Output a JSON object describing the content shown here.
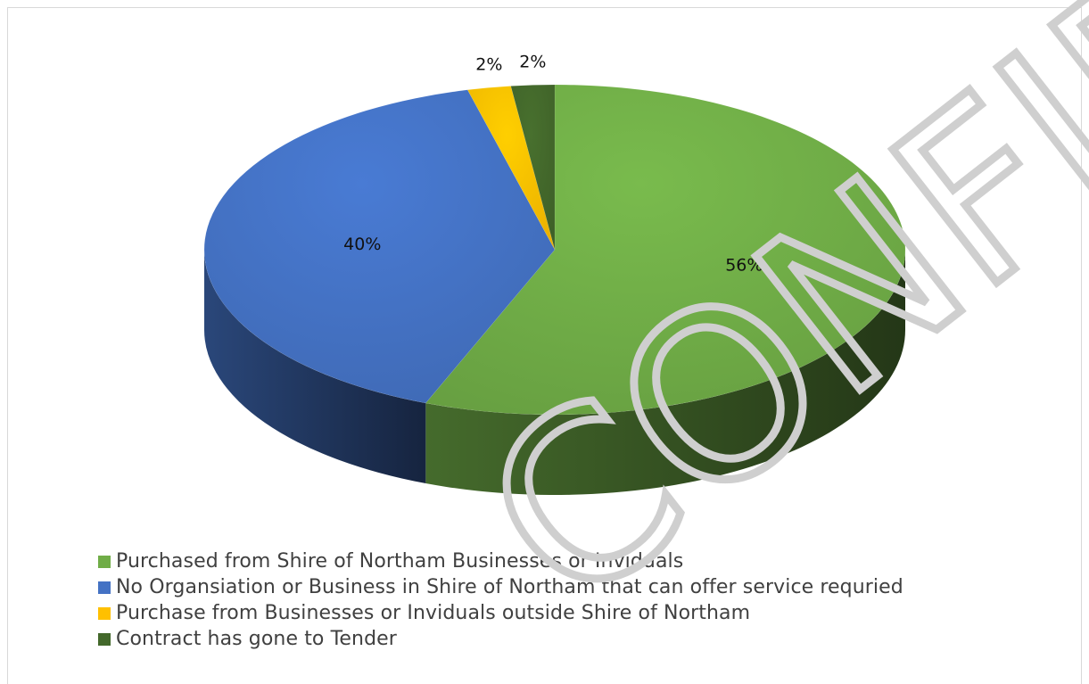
{
  "chart_data": {
    "type": "pie",
    "style": "3d",
    "slices": [
      {
        "label": "Purchased from Shire of Northam Businesses or Inviduals",
        "value": 56,
        "data_label": "56%",
        "color": "#70ad47"
      },
      {
        "label": "No Organsiation or Business in Shire of Northam that can offer service requried",
        "value": 40,
        "data_label": "40%",
        "color": "#4472c4"
      },
      {
        "label": "Purchase from Businesses or Inviduals outside Shire of Northam",
        "value": 2,
        "data_label": "2%",
        "color": "#ffc000"
      },
      {
        "label": "Contract has gone to Tender",
        "value": 2,
        "data_label": "2%",
        "color": "#43682b"
      }
    ],
    "legend_position": "bottom-left"
  },
  "watermark": {
    "text": "CONFIRMED"
  }
}
